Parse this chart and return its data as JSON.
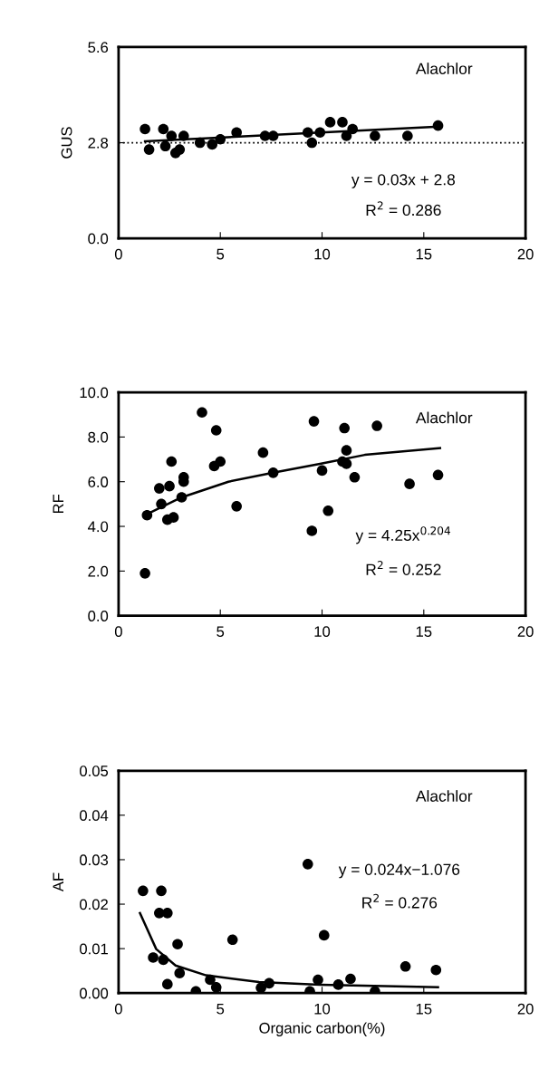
{
  "chart_data": [
    {
      "type": "scatter",
      "ylabel": "GUS",
      "xlim": [
        0,
        20
      ],
      "xticks": [
        0,
        5,
        10,
        15,
        20
      ],
      "ylim": [
        0,
        5.6
      ],
      "yticks": [
        {
          "value": 0,
          "label": "0.0"
        },
        {
          "value": 2.8,
          "label": "2.8"
        },
        {
          "value": 5.6,
          "label": "5.6"
        }
      ],
      "grid": false,
      "legend": false,
      "ref_lines": [
        {
          "axis": "y",
          "value": 2.8,
          "line_style": "dotted",
          "color": "#000000"
        }
      ],
      "annotations": [
        "Alachlor",
        "y = 0.03x + 2.8",
        "R$^{2}$ = 0.286"
      ],
      "series": [
        {
          "marker": "circle",
          "color": "#000000",
          "x": [
            1.3,
            1.5,
            2.2,
            2.3,
            2.6,
            2.8,
            3.2,
            3.0,
            4.0,
            4.6,
            5.0,
            5.8,
            7.2,
            7.6,
            9.3,
            9.5,
            9.9,
            10.4,
            11.0,
            11.2,
            11.5,
            12.6,
            14.2,
            15.7
          ],
          "values": [
            3.2,
            2.6,
            3.2,
            2.7,
            3.0,
            2.5,
            3.0,
            2.6,
            2.8,
            2.75,
            2.9,
            3.1,
            3.0,
            3.0,
            3.1,
            2.8,
            3.1,
            3.4,
            3.4,
            3.0,
            3.2,
            3.0,
            3.0,
            3.3
          ]
        },
        {
          "type": "line",
          "color": "#000000",
          "line_style": "solid",
          "x": [
            1.3,
            15.7
          ],
          "values": [
            2.84,
            3.27
          ]
        }
      ]
    },
    {
      "type": "scatter",
      "ylabel": "RF",
      "xlim": [
        0,
        20
      ],
      "xticks": [
        0,
        5,
        10,
        15,
        20
      ],
      "ylim": [
        0,
        10
      ],
      "yticks": [
        {
          "value": 0,
          "label": "0.0"
        },
        {
          "value": 2,
          "label": "2.0"
        },
        {
          "value": 4,
          "label": "4.0"
        },
        {
          "value": 6,
          "label": "6.0"
        },
        {
          "value": 8,
          "label": "8.0"
        },
        {
          "value": 10,
          "label": "10.0"
        }
      ],
      "grid": false,
      "legend": false,
      "annotations": [
        "Alachlor",
        "y = 4.25x$^{0.204}$",
        "R$^{2}$ = 0.252"
      ],
      "series": [
        {
          "marker": "circle",
          "color": "#000000",
          "x": [
            1.3,
            1.4,
            2.0,
            2.5,
            2.1,
            2.4,
            2.7,
            2.6,
            3.2,
            3.2,
            3.1,
            4.1,
            4.8,
            4.7,
            5.0,
            5.8,
            7.1,
            7.6,
            9.6,
            9.5,
            10.0,
            10.3,
            11.1,
            11.2,
            11.0,
            11.2,
            11.6,
            12.7,
            14.3,
            15.7
          ],
          "values": [
            1.9,
            4.5,
            5.7,
            5.8,
            5.0,
            4.3,
            4.4,
            6.9,
            6.2,
            6.0,
            5.3,
            9.1,
            8.3,
            6.7,
            6.9,
            4.9,
            7.3,
            6.4,
            8.7,
            3.8,
            6.5,
            4.7,
            8.4,
            7.4,
            6.9,
            6.8,
            6.2,
            8.5,
            5.9,
            6.3
          ]
        },
        {
          "type": "line",
          "color": "#000000",
          "line_style": "solid",
          "x": [
            1.3,
            3.1,
            5.4,
            7.6,
            9.9,
            12.1,
            15.8
          ],
          "values": [
            4.5,
            5.3,
            6.0,
            6.4,
            6.8,
            7.2,
            7.5
          ]
        }
      ]
    },
    {
      "type": "scatter",
      "ylabel": "AF",
      "xlabel": "Organic carbon(%)",
      "xlim": [
        0,
        20
      ],
      "xticks": [
        0,
        5,
        10,
        15,
        20
      ],
      "ylim": [
        0,
        0.05
      ],
      "yticks": [
        {
          "value": 0,
          "label": "0.00"
        },
        {
          "value": 0.01,
          "label": "0.01"
        },
        {
          "value": 0.02,
          "label": "0.02"
        },
        {
          "value": 0.03,
          "label": "0.03"
        },
        {
          "value": 0.04,
          "label": "0.04"
        },
        {
          "value": 0.05,
          "label": "0.05"
        }
      ],
      "grid": false,
      "legend": false,
      "annotations": [
        "Alachlor",
        "y = 0.024x−1.076",
        "R$^{2}$ = 0.276"
      ],
      "series": [
        {
          "marker": "circle",
          "color": "#000000",
          "x": [
            1.2,
            2.1,
            2.0,
            2.4,
            2.9,
            1.7,
            2.2,
            3.0,
            2.4,
            3.8,
            4.5,
            4.8,
            5.6,
            7.0,
            7.4,
            9.3,
            9.4,
            9.8,
            10.1,
            10.8,
            11.4,
            12.6,
            14.1,
            15.6
          ],
          "values": [
            0.023,
            0.023,
            0.018,
            0.018,
            0.011,
            0.008,
            0.0075,
            0.0045,
            0.002,
            0.0004,
            0.003,
            0.0013,
            0.012,
            0.0012,
            0.0022,
            0.029,
            0.0004,
            0.003,
            0.013,
            0.0019,
            0.0032,
            0.0004,
            0.006,
            0.0052
          ]
        },
        {
          "type": "line",
          "color": "#000000",
          "line_style": "solid",
          "x": [
            1.05,
            1.85,
            2.8,
            4.3,
            6.9,
            9.9,
            15.7
          ],
          "values": [
            0.018,
            0.0099,
            0.0062,
            0.004,
            0.0025,
            0.0019,
            0.0013
          ]
        }
      ]
    }
  ]
}
